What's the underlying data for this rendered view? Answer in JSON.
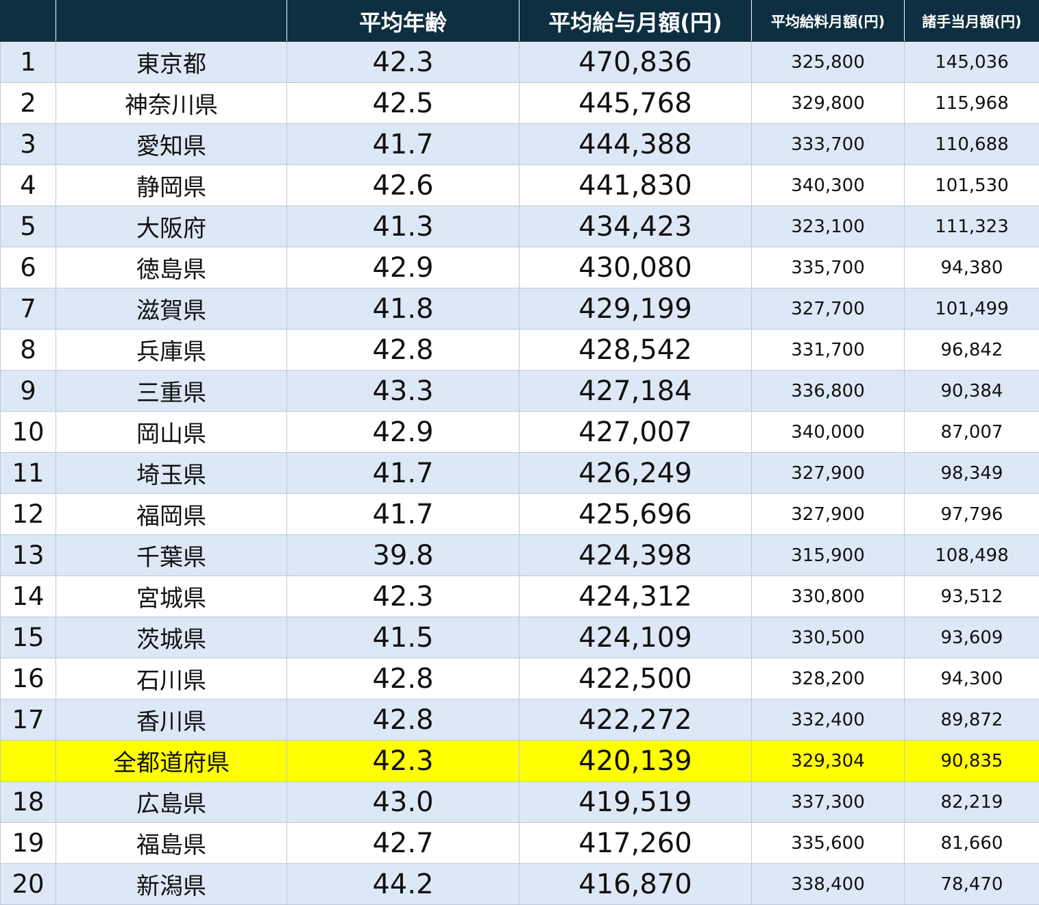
{
  "header": {
    "rank": "",
    "prefecture": "",
    "avg_age": "平均年齢",
    "avg_pay": "平均給与月額(円)",
    "avg_salary": "平均給料月額(円)",
    "allowance": "諸手当月額(円)"
  },
  "highlight_color": "#ffff00",
  "header_color": "#0e2f40",
  "stripe_color": "#dce8f6",
  "rows": [
    {
      "rank": "1",
      "pref": "東京都",
      "age": "42.3",
      "avg": "470,836",
      "sal": "325,800",
      "all": "145,036"
    },
    {
      "rank": "2",
      "pref": "神奈川県",
      "age": "42.5",
      "avg": "445,768",
      "sal": "329,800",
      "all": "115,968"
    },
    {
      "rank": "3",
      "pref": "愛知県",
      "age": "41.7",
      "avg": "444,388",
      "sal": "333,700",
      "all": "110,688"
    },
    {
      "rank": "4",
      "pref": "静岡県",
      "age": "42.6",
      "avg": "441,830",
      "sal": "340,300",
      "all": "101,530"
    },
    {
      "rank": "5",
      "pref": "大阪府",
      "age": "41.3",
      "avg": "434,423",
      "sal": "323,100",
      "all": "111,323"
    },
    {
      "rank": "6",
      "pref": "徳島県",
      "age": "42.9",
      "avg": "430,080",
      "sal": "335,700",
      "all": "94,380"
    },
    {
      "rank": "7",
      "pref": "滋賀県",
      "age": "41.8",
      "avg": "429,199",
      "sal": "327,700",
      "all": "101,499"
    },
    {
      "rank": "8",
      "pref": "兵庫県",
      "age": "42.8",
      "avg": "428,542",
      "sal": "331,700",
      "all": "96,842"
    },
    {
      "rank": "9",
      "pref": "三重県",
      "age": "43.3",
      "avg": "427,184",
      "sal": "336,800",
      "all": "90,384"
    },
    {
      "rank": "10",
      "pref": "岡山県",
      "age": "42.9",
      "avg": "427,007",
      "sal": "340,000",
      "all": "87,007"
    },
    {
      "rank": "11",
      "pref": "埼玉県",
      "age": "41.7",
      "avg": "426,249",
      "sal": "327,900",
      "all": "98,349"
    },
    {
      "rank": "12",
      "pref": "福岡県",
      "age": "41.7",
      "avg": "425,696",
      "sal": "327,900",
      "all": "97,796"
    },
    {
      "rank": "13",
      "pref": "千葉県",
      "age": "39.8",
      "avg": "424,398",
      "sal": "315,900",
      "all": "108,498"
    },
    {
      "rank": "14",
      "pref": "宮城県",
      "age": "42.3",
      "avg": "424,312",
      "sal": "330,800",
      "all": "93,512"
    },
    {
      "rank": "15",
      "pref": "茨城県",
      "age": "41.5",
      "avg": "424,109",
      "sal": "330,500",
      "all": "93,609"
    },
    {
      "rank": "16",
      "pref": "石川県",
      "age": "42.8",
      "avg": "422,500",
      "sal": "328,200",
      "all": "94,300"
    },
    {
      "rank": "17",
      "pref": "香川県",
      "age": "42.8",
      "avg": "422,272",
      "sal": "332,400",
      "all": "89,872"
    },
    {
      "rank": "",
      "pref": "全都道府県",
      "age": "42.3",
      "avg": "420,139",
      "sal": "329,304",
      "all": "90,835",
      "highlight": true
    },
    {
      "rank": "18",
      "pref": "広島県",
      "age": "43.0",
      "avg": "419,519",
      "sal": "337,300",
      "all": "82,219"
    },
    {
      "rank": "19",
      "pref": "福島県",
      "age": "42.7",
      "avg": "417,260",
      "sal": "335,600",
      "all": "81,660"
    },
    {
      "rank": "20",
      "pref": "新潟県",
      "age": "44.2",
      "avg": "416,870",
      "sal": "338,400",
      "all": "78,470"
    }
  ]
}
